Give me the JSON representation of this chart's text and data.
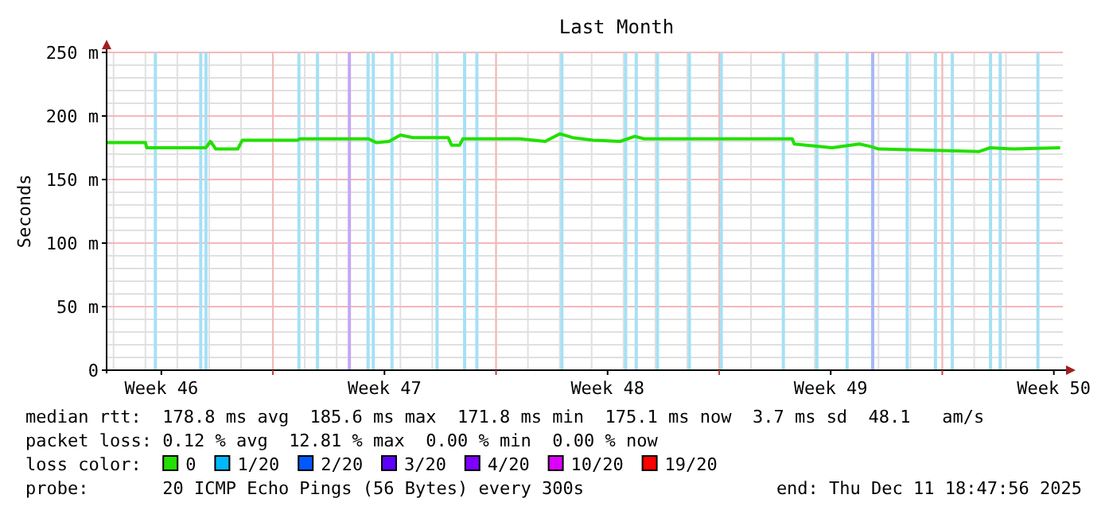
{
  "chart_data": {
    "type": "line",
    "title": "Last Month",
    "ylabel": "Seconds",
    "legend_title": "loss color:",
    "legend": "bottom",
    "grid": true,
    "marker": "none",
    "line_style": "solid",
    "xlim": [
      "2025-11-11T18:47",
      "2025-12-11T18:47"
    ],
    "xticks": [
      {
        "value": "2025-11-13T12:00",
        "label": "Week 46"
      },
      {
        "value": "2025-11-17",
        "label": null
      },
      {
        "value": "2025-11-20T12:00",
        "label": "Week 47"
      },
      {
        "value": "2025-11-24",
        "label": null
      },
      {
        "value": "2025-11-27T12:00",
        "label": "Week 48"
      },
      {
        "value": "2025-12-01",
        "label": null
      },
      {
        "value": "2025-12-04T12:00",
        "label": "Week 49"
      },
      {
        "value": "2025-12-08",
        "label": null
      },
      {
        "value": "2025-12-11T12:00",
        "label": "Week 50"
      }
    ],
    "ylim": [
      0,
      250
    ],
    "yticks": [
      0,
      {
        "value": 50,
        "label": "50 m"
      },
      {
        "value": 100,
        "label": "100 m"
      },
      {
        "value": 150,
        "label": "150 m"
      },
      {
        "value": 200,
        "label": "200 m"
      },
      {
        "value": 250,
        "label": "250 m"
      }
    ],
    "series": [
      {
        "name": "0",
        "color": "#22e000",
        "x": [
          "2025-11-11T18:47",
          "2025-11-13T00:00",
          "2025-11-13T01:00",
          "2025-11-14T21:30",
          "2025-11-15T01:00",
          "2025-11-15T05:00",
          "2025-11-15T21:30",
          "2025-11-16T01:00",
          "2025-11-17T19:00",
          "2025-11-17T20:00",
          "2025-11-20T00:00",
          "2025-11-20T06:00",
          "2025-11-20T15:30",
          "2025-11-21T00:00",
          "2025-11-21T09:30",
          "2025-11-22T12:00",
          "2025-11-22T14:30",
          "2025-11-22T20:30",
          "2025-11-22T23:00",
          "2025-11-24T18:00",
          "2025-11-25T13:00",
          "2025-11-26T00:00",
          "2025-11-26T09:30",
          "2025-11-27T01:00",
          "2025-11-27T21:30",
          "2025-11-28T08:30",
          "2025-11-28T15:30",
          "2025-12-03T07:00",
          "2025-12-03T08:30",
          "2025-12-04T13:00",
          "2025-12-05T09:30",
          "2025-12-05T18:00",
          "2025-12-06T00:00",
          "2025-12-07T18:00",
          "2025-12-09T03:30",
          "2025-12-09T12:00",
          "2025-12-10T06:00",
          "2025-12-11T16:45"
        ],
        "values": [
          179,
          179,
          175,
          175,
          180,
          174,
          174,
          181,
          181,
          182,
          182,
          179,
          180,
          185,
          183,
          183,
          177,
          177,
          182,
          182,
          180,
          186,
          183,
          181,
          180,
          184,
          182,
          182,
          178,
          175,
          178,
          176,
          174,
          173,
          172,
          175,
          174,
          175
        ]
      },
      {
        "name": "1/20",
        "color": "#00b8ff"
      },
      {
        "name": "2/20",
        "color": "#0059ff"
      },
      {
        "name": "3/20",
        "color": "#5e00ff"
      },
      {
        "name": "4/20",
        "color": "#7e00ff"
      },
      {
        "name": "10/20",
        "color": "#dd00ff"
      },
      {
        "name": "19/20",
        "color": "#ff0000"
      }
    ],
    "ref_lines": [
      {
        "axis": "x",
        "value": "2025-11-13T07:30",
        "color": "#a6e0f5"
      },
      {
        "axis": "x",
        "value": "2025-11-14T17:40",
        "color": "#a6e0f5"
      },
      {
        "axis": "x",
        "value": "2025-11-14T21:35",
        "color": "#a6e0f5"
      },
      {
        "axis": "x",
        "value": "2025-11-17T19:35",
        "color": "#a6e0f5"
      },
      {
        "axis": "x",
        "value": "2025-11-18T09:35",
        "color": "#a6e0f5"
      },
      {
        "axis": "x",
        "value": "2025-11-19T09:35",
        "color": "#c4a8f5"
      },
      {
        "axis": "x",
        "value": "2025-11-19T23:40",
        "color": "#a6e0f5"
      },
      {
        "axis": "x",
        "value": "2025-11-20T03:35",
        "color": "#a6e0f5"
      },
      {
        "axis": "x",
        "value": "2025-11-20T17:40",
        "color": "#a6e0f5"
      },
      {
        "axis": "x",
        "value": "2025-11-22T03:35",
        "color": "#a6e0f5"
      },
      {
        "axis": "x",
        "value": "2025-11-23T00:20",
        "color": "#a6e0f5"
      },
      {
        "axis": "x",
        "value": "2025-11-23T09:35",
        "color": "#a6e0f5"
      },
      {
        "axis": "x",
        "value": "2025-11-26T01:35",
        "color": "#a6e0f5"
      },
      {
        "axis": "x",
        "value": "2025-11-28T01:35",
        "color": "#a6e0f5"
      },
      {
        "axis": "x",
        "value": "2025-11-28T09:35",
        "color": "#a6e0f5"
      },
      {
        "axis": "x",
        "value": "2025-11-29T01:35",
        "color": "#a6e0f5"
      },
      {
        "axis": "x",
        "value": "2025-11-30T01:35",
        "color": "#a6e0f5"
      },
      {
        "axis": "x",
        "value": "2025-12-01T01:35",
        "color": "#a6e0f5"
      },
      {
        "axis": "x",
        "value": "2025-12-03T00:20",
        "color": "#a6e0f5"
      },
      {
        "axis": "x",
        "value": "2025-12-04T01:35",
        "color": "#a6e0f5"
      },
      {
        "axis": "x",
        "value": "2025-12-05T00:20",
        "color": "#a6e0f5"
      },
      {
        "axis": "x",
        "value": "2025-12-05T19:35",
        "color": "#a8b8f5"
      },
      {
        "axis": "x",
        "value": "2025-12-06T21:35",
        "color": "#a6e0f5"
      },
      {
        "axis": "x",
        "value": "2025-12-07T18:50",
        "color": "#a6e0f5"
      },
      {
        "axis": "x",
        "value": "2025-12-08T07:35",
        "color": "#a6e0f5"
      },
      {
        "axis": "x",
        "value": "2025-12-09T12:20",
        "color": "#a6e0f5"
      },
      {
        "axis": "x",
        "value": "2025-12-09T19:35",
        "color": "#a6e0f5"
      },
      {
        "axis": "x",
        "value": "2025-12-11T00:00",
        "color": "#a6e0f5"
      }
    ],
    "annotations": [
      "median rtt:  178.8 ms avg  185.6 ms max  171.8 ms min  175.1 ms now  3.7 ms sd  48.1   am/s",
      "packet loss: 0.12 % avg  12.81 % max  0.00 % min  0.00 % now",
      "probe:       20 ICMP Echo Pings (56 Bytes) every 300s",
      "end: Thu Dec 11 18:47:56 2025"
    ]
  }
}
